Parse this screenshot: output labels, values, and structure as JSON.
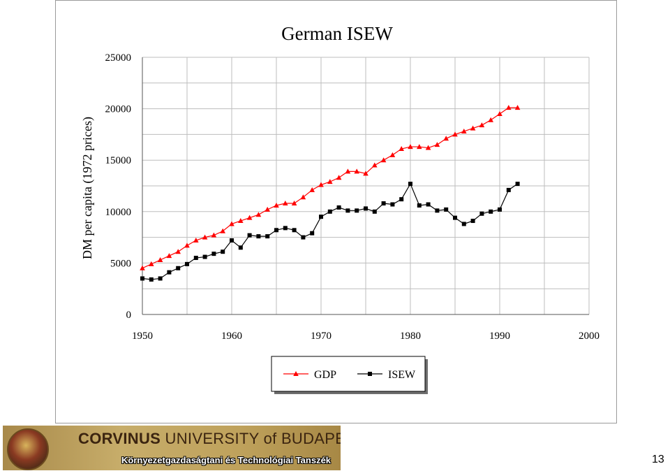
{
  "chart_data": {
    "type": "line",
    "title": "German ISEW",
    "xlabel": "",
    "ylabel": "DM per capita (1972 prices)",
    "xlim": [
      1950,
      2000
    ],
    "ylim": [
      0,
      25000
    ],
    "x_ticks": [
      "1950",
      "1960",
      "1970",
      "1980",
      "1990",
      "2000"
    ],
    "y_ticks": [
      "0",
      "5000",
      "10000",
      "15000",
      "20000",
      "25000"
    ],
    "grid": true,
    "legend_position": "bottom",
    "series": [
      {
        "name": "GDP",
        "color": "#ff0000",
        "marker": "triangle",
        "x": [
          1950,
          1951,
          1952,
          1953,
          1954,
          1955,
          1956,
          1957,
          1958,
          1959,
          1960,
          1961,
          1962,
          1963,
          1964,
          1965,
          1966,
          1967,
          1968,
          1969,
          1970,
          1971,
          1972,
          1973,
          1974,
          1975,
          1976,
          1977,
          1978,
          1979,
          1980,
          1981,
          1982,
          1983,
          1984,
          1985,
          1986,
          1987,
          1988,
          1989,
          1990,
          1991,
          1992
        ],
        "values": [
          4500,
          4900,
          5300,
          5700,
          6100,
          6700,
          7200,
          7500,
          7700,
          8100,
          8800,
          9100,
          9400,
          9700,
          10200,
          10600,
          10800,
          10800,
          11400,
          12100,
          12600,
          12900,
          13300,
          13900,
          13900,
          13700,
          14500,
          15000,
          15500,
          16100,
          16300,
          16300,
          16200,
          16500,
          17100,
          17500,
          17800,
          18100,
          18400,
          18900,
          19500,
          20100,
          20100
        ]
      },
      {
        "name": "ISEW",
        "color": "#000000",
        "marker": "square",
        "x": [
          1950,
          1951,
          1952,
          1953,
          1954,
          1955,
          1956,
          1957,
          1958,
          1959,
          1960,
          1961,
          1962,
          1963,
          1964,
          1965,
          1966,
          1967,
          1968,
          1969,
          1970,
          1971,
          1972,
          1973,
          1974,
          1975,
          1976,
          1977,
          1978,
          1979,
          1980,
          1981,
          1982,
          1983,
          1984,
          1985,
          1986,
          1987,
          1988,
          1989,
          1990,
          1991,
          1992
        ],
        "values": [
          3500,
          3400,
          3500,
          4100,
          4500,
          4900,
          5500,
          5600,
          5900,
          6100,
          7200,
          6500,
          7700,
          7600,
          7600,
          8200,
          8400,
          8200,
          7500,
          7900,
          9500,
          10000,
          10400,
          10100,
          10100,
          10300,
          10000,
          10800,
          10700,
          11200,
          12700,
          10600,
          10700,
          10100,
          10200,
          9400,
          8800,
          9100,
          9800,
          10000,
          10200,
          12100,
          12700
        ]
      }
    ]
  },
  "footer": {
    "university_bold": "CORVINUS",
    "university_rest": " UNIVERSITY of BUDAPEST",
    "department": "Környezetgazdaságtani és Technológiai Tanszék",
    "page_number": "13"
  }
}
